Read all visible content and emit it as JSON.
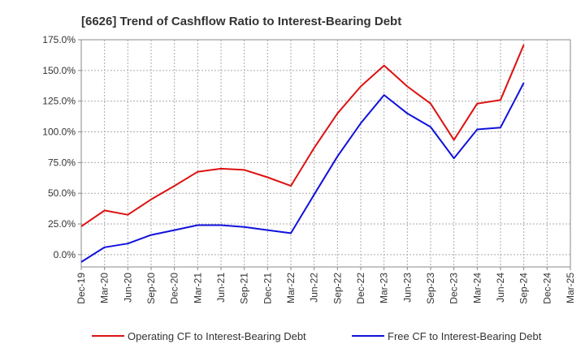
{
  "chart_data": {
    "type": "line",
    "title": "[6626]  Trend of Cashflow Ratio to Interest-Bearing Debt",
    "xlabel": "",
    "ylabel": "",
    "ylim": [
      -10,
      175
    ],
    "y_ticks": [
      0,
      25,
      50,
      75,
      100,
      125,
      150,
      175
    ],
    "y_tick_labels": [
      "0.0%",
      "25.0%",
      "50.0%",
      "75.0%",
      "100.0%",
      "125.0%",
      "150.0%",
      "175.0%"
    ],
    "x_tick_labels": [
      "Dec-19",
      "Mar-20",
      "Jun-20",
      "Sep-20",
      "Dec-20",
      "Mar-21",
      "Jun-21",
      "Sep-21",
      "Dec-21",
      "Mar-22",
      "Jun-22",
      "Sep-22",
      "Dec-22",
      "Mar-23",
      "Jun-23",
      "Sep-23",
      "Dec-23",
      "Mar-24",
      "Jun-24",
      "Sep-24",
      "Dec-24",
      "Mar-25"
    ],
    "x": [
      "Dec-19",
      "Mar-20",
      "Jun-20",
      "Sep-20",
      "Dec-20",
      "Mar-21",
      "Jun-21",
      "Sep-21",
      "Dec-21",
      "Mar-22",
      "Jun-22",
      "Sep-22",
      "Dec-22",
      "Mar-23",
      "Jun-23",
      "Sep-23",
      "Dec-23",
      "Mar-24",
      "Jun-24",
      "Sep-24"
    ],
    "grid": true,
    "legend_position": "bottom",
    "series": [
      {
        "name": "Operating CF to Interest-Bearing Debt",
        "color": "#dd1111",
        "values": [
          23,
          36,
          32.5,
          45,
          56,
          67.5,
          70,
          69,
          63,
          56,
          87,
          115,
          137,
          154,
          137,
          123,
          93.5,
          123,
          126,
          171
        ]
      },
      {
        "name": "Free CF to Interest-Bearing Debt",
        "color": "#1111dd",
        "values": [
          -6,
          6,
          9,
          16,
          20,
          24,
          24,
          22.5,
          20,
          17.5,
          49,
          80,
          107,
          130,
          115,
          104,
          78.5,
          102,
          103.5,
          140
        ]
      }
    ]
  }
}
